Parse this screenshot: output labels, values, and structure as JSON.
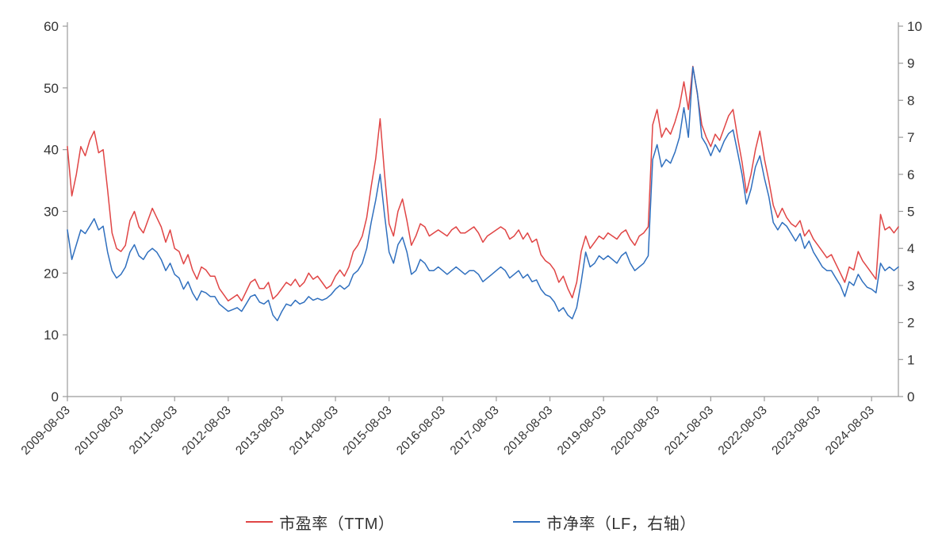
{
  "page": {
    "background": "#ffffff"
  },
  "colors": {
    "pe_red": "#e04545",
    "pb_blue": "#2f6fbe",
    "axis_line": "#9b9b9b",
    "tick_text": "#333333"
  },
  "chart_data": {
    "type": "line",
    "title": "",
    "xlabel": "",
    "ylabel_left": "",
    "ylabel_right": "",
    "grid": false,
    "legend_position": "bottom",
    "x_start": "2009-08",
    "x_end": "2025-02",
    "x_tick_labels": [
      "2009-08-03",
      "2010-08-03",
      "2011-08-03",
      "2012-08-03",
      "2013-08-03",
      "2014-08-03",
      "2015-08-03",
      "2016-08-03",
      "2017-08-03",
      "2018-08-03",
      "2019-08-03",
      "2020-08-03",
      "2021-08-03",
      "2022-08-03",
      "2023-08-03",
      "2024-08-03"
    ],
    "left_axis": {
      "min": 0,
      "max": 60,
      "ticks": [
        0,
        10,
        20,
        30,
        40,
        50,
        60
      ]
    },
    "right_axis": {
      "min": 0,
      "max": 10,
      "ticks": [
        0,
        1,
        2,
        3,
        4,
        5,
        6,
        7,
        8,
        9,
        10
      ]
    },
    "series": [
      {
        "name": "市盈率（TTM）",
        "axis": "left",
        "color": "#e04545",
        "values": [
          40.5,
          32.5,
          36,
          40.5,
          39,
          41.5,
          43,
          39.5,
          40,
          33.5,
          26.5,
          24,
          23.5,
          24.5,
          28.5,
          30,
          27.5,
          26.5,
          28.5,
          30.5,
          29,
          27.5,
          25,
          27,
          24,
          23.5,
          21.5,
          23,
          20.5,
          19,
          21,
          20.5,
          19.5,
          19.5,
          17.5,
          16.5,
          15.5,
          16,
          16.5,
          15.5,
          17,
          18.5,
          19,
          17.5,
          17.5,
          18.5,
          15.8,
          16.5,
          17.5,
          18.5,
          18,
          19,
          17.8,
          18.5,
          20,
          19,
          19.5,
          18.5,
          17.5,
          18,
          19.5,
          20.5,
          19.5,
          21,
          23.5,
          24.5,
          26,
          29,
          34,
          38.5,
          45,
          36,
          28,
          26,
          30,
          32,
          28.5,
          24.5,
          26,
          28,
          27.5,
          26,
          26.5,
          27,
          26.5,
          26,
          27,
          27.5,
          26.5,
          26.5,
          27,
          27.5,
          26.5,
          25,
          26,
          26.5,
          27,
          27.5,
          27,
          25.5,
          26,
          27,
          25.5,
          26.5,
          25,
          25.5,
          23,
          22,
          21.5,
          20.5,
          18.5,
          19.5,
          17.5,
          16,
          18.5,
          23.5,
          26,
          24,
          25,
          26,
          25.5,
          26.5,
          26,
          25.5,
          26.5,
          27,
          25.5,
          24.5,
          26,
          26.5,
          27.5,
          44,
          46.5,
          42,
          43.5,
          42.5,
          44.5,
          47,
          51,
          46.5,
          53.5,
          49,
          44,
          42,
          40.5,
          42.5,
          41.5,
          43.5,
          45.5,
          46.5,
          42,
          38,
          33,
          36,
          40,
          43,
          38.5,
          35,
          31,
          29,
          30.5,
          29,
          28,
          27.5,
          28.5,
          26,
          27,
          25.5,
          24.5,
          23.5,
          22.5,
          23,
          21.5,
          20,
          18.5,
          21,
          20.5,
          23.5,
          22,
          21,
          20,
          19,
          29.5,
          27,
          27.5,
          26.5,
          27.5
        ]
      },
      {
        "name": "市净率（LF，右轴）",
        "axis": "right",
        "color": "#2f6fbe",
        "values": [
          4.5,
          3.7,
          4.1,
          4.5,
          4.4,
          4.6,
          4.8,
          4.5,
          4.6,
          3.9,
          3.4,
          3.2,
          3.3,
          3.5,
          3.9,
          4.1,
          3.8,
          3.7,
          3.9,
          4.0,
          3.9,
          3.7,
          3.4,
          3.6,
          3.3,
          3.2,
          2.9,
          3.1,
          2.8,
          2.6,
          2.85,
          2.8,
          2.7,
          2.7,
          2.5,
          2.4,
          2.3,
          2.35,
          2.4,
          2.3,
          2.5,
          2.7,
          2.75,
          2.55,
          2.5,
          2.6,
          2.2,
          2.05,
          2.3,
          2.5,
          2.45,
          2.6,
          2.5,
          2.55,
          2.7,
          2.6,
          2.65,
          2.6,
          2.65,
          2.75,
          2.9,
          3.0,
          2.9,
          3.0,
          3.3,
          3.4,
          3.6,
          4.0,
          4.7,
          5.3,
          6.0,
          4.9,
          3.9,
          3.6,
          4.1,
          4.3,
          3.9,
          3.3,
          3.4,
          3.7,
          3.6,
          3.4,
          3.4,
          3.5,
          3.4,
          3.3,
          3.4,
          3.5,
          3.4,
          3.3,
          3.4,
          3.4,
          3.3,
          3.1,
          3.2,
          3.3,
          3.4,
          3.5,
          3.4,
          3.2,
          3.3,
          3.4,
          3.2,
          3.3,
          3.1,
          3.15,
          2.9,
          2.75,
          2.7,
          2.55,
          2.3,
          2.4,
          2.2,
          2.1,
          2.4,
          3.1,
          3.9,
          3.5,
          3.6,
          3.8,
          3.7,
          3.8,
          3.7,
          3.6,
          3.8,
          3.9,
          3.6,
          3.4,
          3.5,
          3.6,
          3.8,
          6.4,
          6.8,
          6.2,
          6.4,
          6.3,
          6.6,
          7.0,
          7.8,
          7.0,
          8.9,
          8.2,
          7.0,
          6.8,
          6.5,
          6.8,
          6.6,
          6.9,
          7.1,
          7.2,
          6.6,
          6.0,
          5.2,
          5.6,
          6.2,
          6.5,
          5.9,
          5.4,
          4.7,
          4.5,
          4.7,
          4.6,
          4.4,
          4.2,
          4.4,
          4.0,
          4.2,
          3.9,
          3.7,
          3.5,
          3.4,
          3.4,
          3.2,
          3.0,
          2.7,
          3.1,
          3.0,
          3.3,
          3.1,
          2.95,
          2.9,
          2.8,
          3.6,
          3.4,
          3.5,
          3.4,
          3.5
        ]
      }
    ]
  },
  "legend": {
    "pe_label": "市盈率（TTM）",
    "pb_label": "市净率（LF，右轴）"
  }
}
